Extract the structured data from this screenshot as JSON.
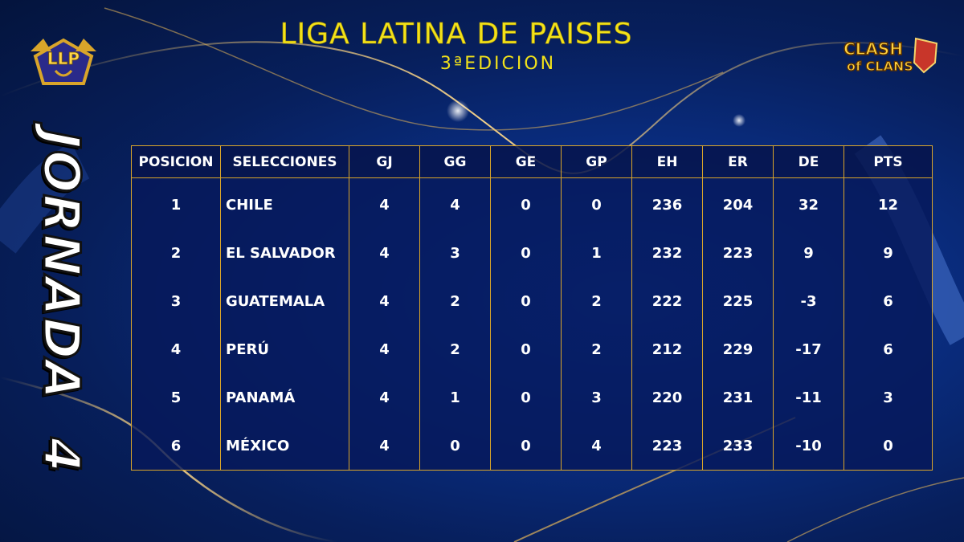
{
  "header": {
    "title": "LIGA LATINA DE PAISES",
    "edition": "3ªEDICION"
  },
  "jornada": {
    "word": "JORNADA",
    "number": "4"
  },
  "logos": {
    "left": {
      "text": "LLP",
      "icon": "llp-league-logo"
    },
    "right": {
      "line1": "CLASH",
      "line2": "of CLANS",
      "icon": "clash-of-clans-logo"
    }
  },
  "colors": {
    "accent_gold": "#d9a52a",
    "title_yellow": "#f2e21a",
    "background": "#0a2f86"
  },
  "table": {
    "columns": [
      "POSICION",
      "SELECCIONES",
      "GJ",
      "GG",
      "GE",
      "GP",
      "EH",
      "ER",
      "DE",
      "PTS"
    ],
    "rows": [
      [
        "1",
        "CHILE",
        "4",
        "4",
        "0",
        "0",
        "236",
        "204",
        "32",
        "12"
      ],
      [
        "2",
        "EL SALVADOR",
        "4",
        "3",
        "0",
        "1",
        "232",
        "223",
        "9",
        "9"
      ],
      [
        "3",
        "GUATEMALA",
        "4",
        "2",
        "0",
        "2",
        "222",
        "225",
        "-3",
        "6"
      ],
      [
        "4",
        "PERÚ",
        "4",
        "2",
        "0",
        "2",
        "212",
        "229",
        "-17",
        "6"
      ],
      [
        "5",
        "PANAMÁ",
        "4",
        "1",
        "0",
        "3",
        "220",
        "231",
        "-11",
        "3"
      ],
      [
        "6",
        "MÉXICO",
        "4",
        "0",
        "0",
        "4",
        "223",
        "233",
        "-10",
        "0"
      ]
    ]
  }
}
